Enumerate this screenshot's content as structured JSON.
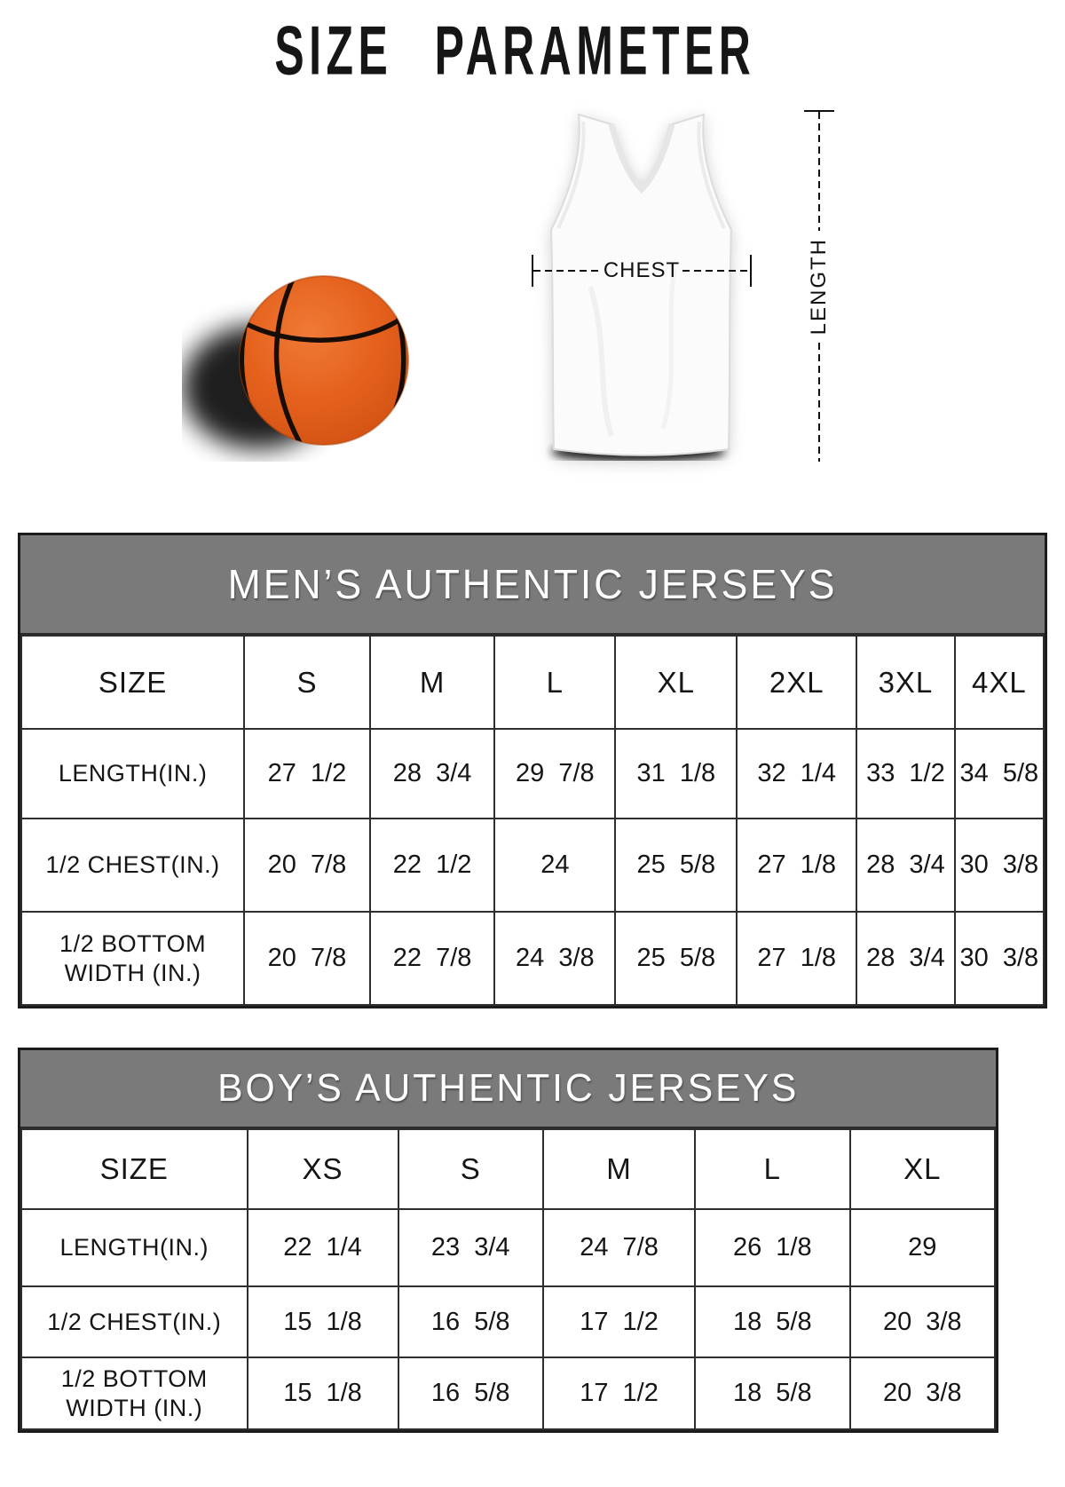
{
  "page_title": "SIZE PARAMETER",
  "diagram": {
    "chest_label": "CHEST",
    "length_label": "LENGTH",
    "basketball_color": "#e4601c",
    "jersey_color": "#fbfbfb",
    "shadow_color": "#000000"
  },
  "tables": [
    {
      "id": "mens-jerseys",
      "title": "MEN’S AUTHENTIC JERSEYS",
      "header_bg": "#7a7a7a",
      "size_label": "SIZE",
      "columns": [
        "S",
        "M",
        "L",
        "XL",
        "2XL",
        "3XL",
        "4XL"
      ],
      "rows": [
        {
          "label": "LENGTH(IN.)",
          "values": [
            "27 1/2",
            "28 3/4",
            "29 7/8",
            "31 1/8",
            "32 1/4",
            "33 1/2",
            "34 5/8"
          ]
        },
        {
          "label": "1/2 CHEST(IN.)",
          "values": [
            "20 7/8",
            "22 1/2",
            "24",
            "25 5/8",
            "27 1/8",
            "28 3/4",
            "30 3/8"
          ]
        },
        {
          "label": "1/2 BOTTOM\nWIDTH  (IN.)",
          "values": [
            "20 7/8",
            "22 7/8",
            "24 3/8",
            "25 5/8",
            "27 1/8",
            "28 3/4",
            "30 3/8"
          ]
        }
      ]
    },
    {
      "id": "boys-jerseys",
      "title": "BOY’S AUTHENTIC JERSEYS",
      "header_bg": "#7a7a7a",
      "size_label": "SIZE",
      "columns": [
        "XS",
        "S",
        "M",
        "L",
        "XL"
      ],
      "rows": [
        {
          "label": "LENGTH(IN.)",
          "values": [
            "22 1/4",
            "23 3/4",
            "24 7/8",
            "26 1/8",
            "29"
          ]
        },
        {
          "label": "1/2 CHEST(IN.)",
          "values": [
            "15 1/8",
            "16 5/8",
            "17 1/2",
            "18 5/8",
            "20 3/8"
          ]
        },
        {
          "label": "1/2 BOTTOM\nWIDTH  (IN.)",
          "values": [
            "15 1/8",
            "16 5/8",
            "17 1/2",
            "18 5/8",
            "20 3/8"
          ]
        }
      ]
    }
  ]
}
